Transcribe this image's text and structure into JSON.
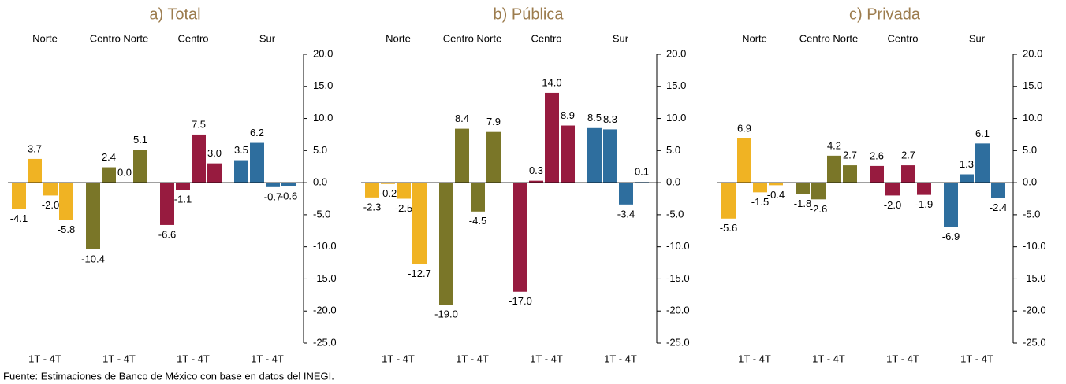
{
  "chart_data": [
    {
      "type": "bar",
      "title": "a) Total",
      "quarter_range": "1T - 4T",
      "series": [
        {
          "name": "Norte",
          "color": "#f0b323",
          "values": [
            -4.1,
            3.7,
            -2.0,
            -5.8
          ],
          "value_labels": [
            "-4.1",
            "3.7",
            "-2.0",
            "-5.8"
          ]
        },
        {
          "name": "Centro Norte",
          "color": "#7a7628",
          "values": [
            -10.4,
            2.4,
            0.0,
            5.1
          ],
          "value_labels": [
            "-10.4",
            "2.4",
            "0.0",
            "5.1"
          ]
        },
        {
          "name": "Centro",
          "color": "#971b3f",
          "values": [
            -6.6,
            -1.1,
            7.5,
            3.0
          ],
          "value_labels": [
            "-6.6",
            "-1.1",
            "7.5",
            "3.0"
          ]
        },
        {
          "name": "Sur",
          "color": "#2e6e9e",
          "values": [
            3.5,
            6.2,
            -0.7,
            -0.6
          ],
          "value_labels": [
            "3.5",
            "6.2",
            "-0.7",
            "-0.6"
          ]
        }
      ],
      "ylim": [
        -25,
        20
      ],
      "yticks": [
        {
          "value": 20,
          "label": "20.0"
        },
        {
          "value": 15,
          "label": "15.0"
        },
        {
          "value": 10,
          "label": "10.0"
        },
        {
          "value": 5,
          "label": "5.0"
        },
        {
          "value": 0,
          "label": "0.0"
        },
        {
          "value": -5,
          "label": "-5.0"
        },
        {
          "value": -10,
          "label": "-10.0"
        },
        {
          "value": -15,
          "label": "-15.0"
        },
        {
          "value": -20,
          "label": "-20.0"
        },
        {
          "value": -25,
          "label": "-25.0"
        }
      ]
    },
    {
      "type": "bar",
      "title": "b) Pública",
      "quarter_range": "1T - 4T",
      "series": [
        {
          "name": "Norte",
          "color": "#f0b323",
          "values": [
            -2.3,
            -0.2,
            -2.5,
            -12.7
          ],
          "value_labels": [
            "-2.3",
            "-0.2",
            "-2.5",
            "-12.7"
          ]
        },
        {
          "name": "Centro Norte",
          "color": "#7a7628",
          "values": [
            -19.0,
            8.4,
            -4.5,
            7.9
          ],
          "value_labels": [
            "-19.0",
            "8.4",
            "-4.5",
            "7.9"
          ]
        },
        {
          "name": "Centro",
          "color": "#971b3f",
          "values": [
            -17.0,
            0.3,
            14.0,
            8.9
          ],
          "value_labels": [
            "-17.0",
            "0.3",
            "14.0",
            "8.9"
          ]
        },
        {
          "name": "Sur",
          "color": "#2e6e9e",
          "values": [
            8.5,
            8.3,
            -3.4,
            0.1
          ],
          "value_labels": [
            "8.5",
            "8.3",
            "-3.4",
            "0.1"
          ]
        }
      ],
      "ylim": [
        -25,
        20
      ],
      "yticks": [
        {
          "value": 20,
          "label": "20.0"
        },
        {
          "value": 15,
          "label": "15.0"
        },
        {
          "value": 10,
          "label": "10.0"
        },
        {
          "value": 5,
          "label": "5.0"
        },
        {
          "value": 0,
          "label": "0.0"
        },
        {
          "value": -5,
          "label": "-5.0"
        },
        {
          "value": -10,
          "label": "-10.0"
        },
        {
          "value": -15,
          "label": "-15.0"
        },
        {
          "value": -20,
          "label": "-20.0"
        },
        {
          "value": -25,
          "label": "-25.0"
        }
      ]
    },
    {
      "type": "bar",
      "title": "c) Privada",
      "quarter_range": "1T - 4T",
      "series": [
        {
          "name": "Norte",
          "color": "#f0b323",
          "values": [
            -5.6,
            6.9,
            -1.5,
            -0.4
          ],
          "value_labels": [
            "-5.6",
            "6.9",
            "-1.5",
            "-0.4"
          ]
        },
        {
          "name": "Centro Norte",
          "color": "#7a7628",
          "values": [
            -1.8,
            -2.6,
            4.2,
            2.7
          ],
          "value_labels": [
            "-1.8",
            "-2.6",
            "4.2",
            "2.7"
          ]
        },
        {
          "name": "Centro",
          "color": "#971b3f",
          "values": [
            2.6,
            -2.0,
            2.7,
            -1.9
          ],
          "value_labels": [
            "2.6",
            "-2.0",
            "2.7",
            "-1.9"
          ]
        },
        {
          "name": "Sur",
          "color": "#2e6e9e",
          "values": [
            -6.9,
            1.3,
            6.1,
            -2.4
          ],
          "value_labels": [
            "-6.9",
            "1.3",
            "6.1",
            "-2.4"
          ]
        }
      ],
      "ylim": [
        -25,
        20
      ],
      "yticks": [
        {
          "value": 20,
          "label": "20.0"
        },
        {
          "value": 15,
          "label": "15.0"
        },
        {
          "value": 10,
          "label": "10.0"
        },
        {
          "value": 5,
          "label": "5.0"
        },
        {
          "value": 0,
          "label": "0.0"
        },
        {
          "value": -5,
          "label": "-5.0"
        },
        {
          "value": -10,
          "label": "-10.0"
        },
        {
          "value": -15,
          "label": "-15.0"
        },
        {
          "value": -20,
          "label": "-20.0"
        },
        {
          "value": -25,
          "label": "-25.0"
        }
      ]
    }
  ],
  "footer": "Fuente: Estimaciones de Banco de México con base en datos del INEGI."
}
